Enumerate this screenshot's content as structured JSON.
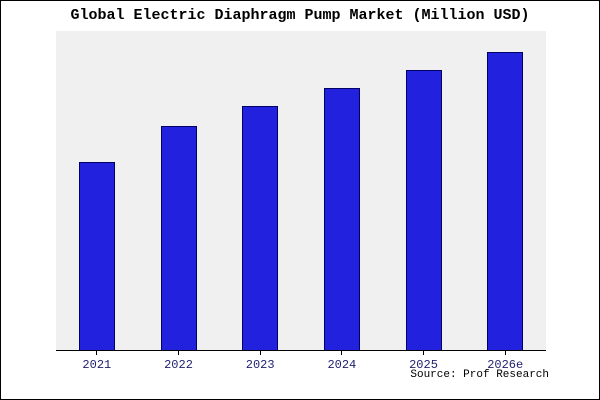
{
  "title": "Global Electric Diaphragm Pump Market (Million USD)",
  "source": "Source: Prof Research",
  "colors": {
    "bar_fill": "#2121de",
    "bar_border": "#000066",
    "plot_background": "#f0f0f0",
    "axis": "#000000",
    "tick_label": "#1f1f6e",
    "title_color": "#000000",
    "frame_border": "#000000"
  },
  "chart_data": {
    "type": "bar",
    "categories": [
      "2021",
      "2022",
      "2023",
      "2024",
      "2025",
      "2026e"
    ],
    "values": [
      63,
      75,
      82,
      88,
      94,
      100
    ],
    "title": "Global Electric Diaphragm Pump Market (Million USD)",
    "xlabel": "",
    "ylabel": "",
    "ylim": [
      0,
      107
    ],
    "grid": false,
    "legend": false,
    "y_axis_labels_visible": false,
    "source": "Source: Prof Research"
  }
}
